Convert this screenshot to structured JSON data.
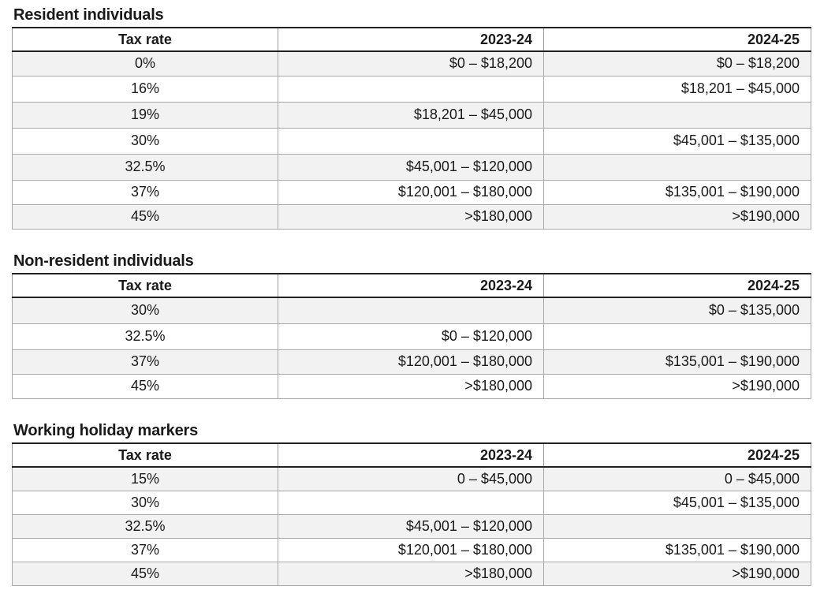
{
  "headers": {
    "rate": "Tax rate",
    "y1": "2023-24",
    "y2": "2024-25"
  },
  "sections": [
    {
      "title": "Resident individuals",
      "rows": [
        {
          "rate": "0%",
          "y1": "$0 – $18,200",
          "y2": "$0 – $18,200"
        },
        {
          "rate": "16%",
          "y1": "",
          "y2": "$18,201 – $45,000"
        },
        {
          "rate": "19%",
          "y1": "$18,201 – $45,000",
          "y2": ""
        },
        {
          "rate": "30%",
          "y1": "",
          "y2": "$45,001 – $135,000"
        },
        {
          "rate": "32.5%",
          "y1": "$45,001 – $120,000",
          "y2": ""
        },
        {
          "rate": "37%",
          "y1": "$120,001 – $180,000",
          "y2": "$135,001 – $190,000"
        },
        {
          "rate": "45%",
          "y1": ">$180,000",
          "y2": ">$190,000"
        }
      ]
    },
    {
      "title": "Non-resident individuals",
      "rows": [
        {
          "rate": "30%",
          "y1": "",
          "y2": "$0 – $135,000"
        },
        {
          "rate": "32.5%",
          "y1": "$0 – $120,000",
          "y2": ""
        },
        {
          "rate": "37%",
          "y1": "$120,001 – $180,000",
          "y2": "$135,001 – $190,000"
        },
        {
          "rate": "45%",
          "y1": ">$180,000",
          "y2": ">$190,000"
        }
      ]
    },
    {
      "title": "Working holiday markers",
      "rows": [
        {
          "rate": "15%",
          "y1": "0 – $45,000",
          "y2": "0 – $45,000"
        },
        {
          "rate": "30%",
          "y1": "",
          "y2": "$45,001 – $135,000"
        },
        {
          "rate": "32.5%",
          "y1": "$45,001 – $120,000",
          "y2": ""
        },
        {
          "rate": "37%",
          "y1": "$120,001 – $180,000",
          "y2": "$135,001 – $190,000"
        },
        {
          "rate": "45%",
          "y1": ">$180,000",
          "y2": ">$190,000"
        }
      ]
    }
  ]
}
